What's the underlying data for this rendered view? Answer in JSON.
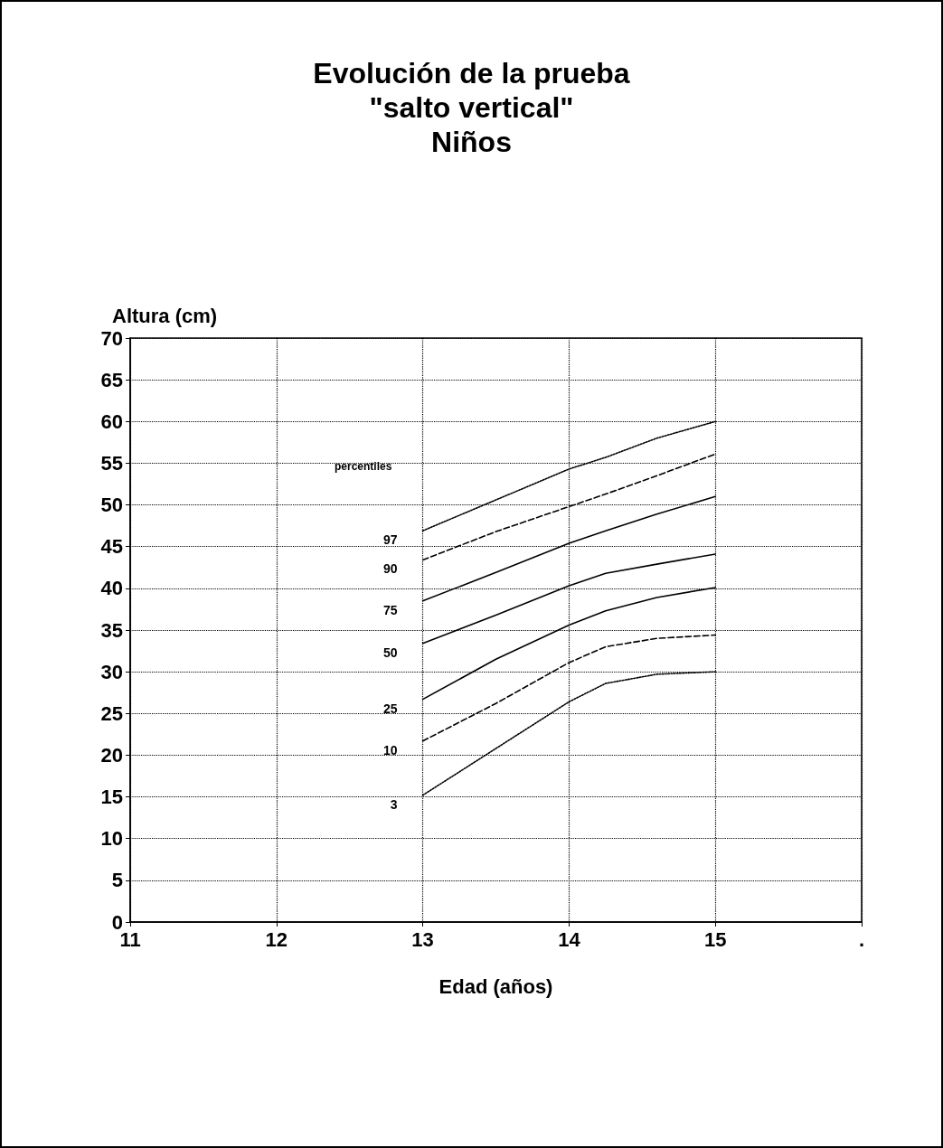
{
  "chart_data": {
    "type": "line",
    "title": "Evolución de la prueba\n\"salto vertical\"\nNiños",
    "xlabel": "Edad (años)",
    "ylabel": "Altura (cm)",
    "legend_title": "percentiles",
    "x": [
      13,
      13.5,
      14,
      14.25,
      14.6,
      15
    ],
    "series": [
      {
        "name": "97",
        "color": "#000000",
        "line_style": "dotted",
        "values": [
          46.9,
          50.6,
          54.3,
          55.7,
          58,
          60
        ]
      },
      {
        "name": "90",
        "color": "#000000",
        "line_style": "dashed",
        "values": [
          43.4,
          46.8,
          49.8,
          51.3,
          53.5,
          56.1
        ]
      },
      {
        "name": "75",
        "color": "#000000",
        "line_style": "solid",
        "values": [
          38.5,
          41.9,
          45.4,
          46.9,
          48.9,
          51
        ]
      },
      {
        "name": "50",
        "color": "#000000",
        "line_style": "solid",
        "values": [
          33.4,
          36.8,
          40.3,
          41.8,
          42.9,
          44.1
        ]
      },
      {
        "name": "25",
        "color": "#000000",
        "line_style": "solid",
        "values": [
          26.7,
          31.5,
          35.6,
          37.3,
          38.9,
          40.1
        ]
      },
      {
        "name": "10",
        "color": "#000000",
        "line_style": "dashed",
        "values": [
          21.7,
          26.2,
          31.1,
          33,
          34,
          34.4
        ]
      },
      {
        "name": "3",
        "color": "#000000",
        "line_style": "dotted",
        "values": [
          15.2,
          20.8,
          26.4,
          28.6,
          29.7,
          30
        ]
      }
    ],
    "xlim": [
      11,
      16
    ],
    "xticks": [
      11,
      12,
      13,
      14,
      15,
      {
        "value": 16,
        "label": "."
      }
    ],
    "ylim": [
      0,
      70
    ],
    "yticks": [
      0,
      5,
      10,
      15,
      20,
      25,
      30,
      35,
      40,
      45,
      50,
      55,
      60,
      65,
      70
    ],
    "grid": true,
    "marker": "none",
    "legend": false
  }
}
